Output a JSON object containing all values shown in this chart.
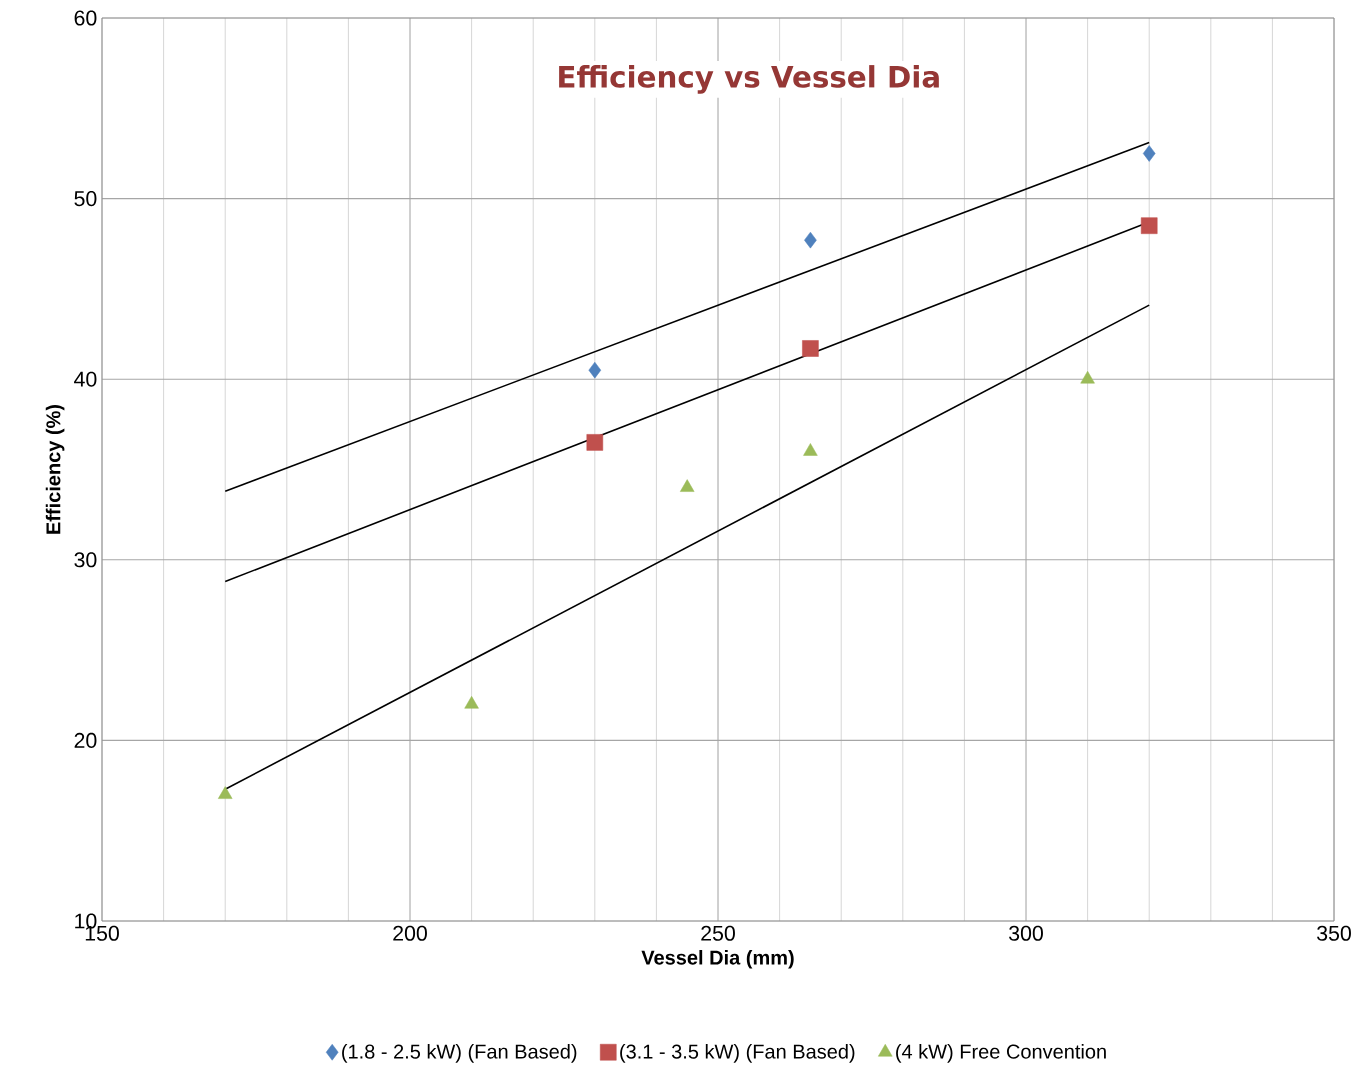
{
  "chart_data": {
    "type": "scatter",
    "title": "Efficiency  vs  Vessel Dia",
    "xlabel": "Vessel Dia (mm)",
    "ylabel": "Efficiency (%)",
    "xlim": [
      150,
      350
    ],
    "xticks": [
      150,
      200,
      250,
      300,
      350
    ],
    "ylim": [
      10,
      60
    ],
    "yticks": [
      10,
      20,
      30,
      40,
      50,
      60
    ],
    "grid": true,
    "legend": "bottom",
    "series": [
      {
        "name": "(1.8 - 2.5 kW) (Fan Based)",
        "color": "#4f81bd",
        "marker": "diamond",
        "x": [
          230,
          265,
          320
        ],
        "values": [
          40.5,
          47.7,
          52.5
        ]
      },
      {
        "name": "(3.1 - 3.5 kW) (Fan Based)",
        "color": "#c0504d",
        "marker": "square",
        "x": [
          230,
          265,
          320
        ],
        "values": [
          36.5,
          41.7,
          48.5
        ]
      },
      {
        "name": "(4 kW) Free Convention",
        "color": "#9bbb59",
        "marker": "triangle",
        "x": [
          170,
          210,
          245,
          265,
          310
        ],
        "values": [
          17,
          22,
          34,
          36,
          40
        ]
      },
      {
        "type": "line",
        "color": "#000000",
        "x": [
          170,
          320
        ],
        "values": [
          33.8,
          53.1
        ]
      },
      {
        "type": "line",
        "color": "#000000",
        "x": [
          170,
          320
        ],
        "values": [
          28.8,
          48.7
        ]
      },
      {
        "type": "line",
        "color": "#000000",
        "x": [
          170,
          320
        ],
        "values": [
          17.3,
          44.1
        ]
      }
    ]
  }
}
